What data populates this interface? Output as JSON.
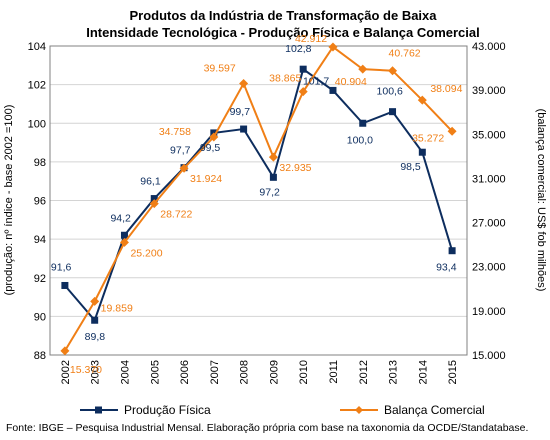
{
  "chart_data": {
    "type": "line",
    "title": "Produtos da Indústria de Transformação de Baixa",
    "subtitle": "Intensidade Tecnológica - Produção Física e Balança Comercial",
    "ylabel_left": "(produção: nº índice - base 2002 =100)",
    "ylabel_right": "(balança comercial: US$ fob milhões)",
    "source": "Fonte: IBGE – Pesquisa Industrial Mensal. Elaboração própria com base na taxonomia da OCDE/Standatabase.",
    "categories": [
      "2002",
      "2003",
      "2004",
      "2005",
      "2006",
      "2007",
      "2008",
      "2009",
      "2010",
      "2011",
      "2012",
      "2013",
      "2014",
      "2015"
    ],
    "ylim_left": [
      88,
      104
    ],
    "yticks_left": [
      "88",
      "90",
      "92",
      "94",
      "96",
      "98",
      "100",
      "102",
      "104"
    ],
    "ylim_right": [
      15000,
      43000
    ],
    "yticks_right": [
      "15.000",
      "19.000",
      "23.000",
      "27.000",
      "31.000",
      "35.000",
      "39.000",
      "43.000"
    ],
    "grid": true,
    "legend_position": "bottom",
    "series": [
      {
        "name": "Produção Física",
        "axis": "left",
        "color": "#0d2d5e",
        "marker": "square",
        "values": [
          91.6,
          89.8,
          94.2,
          96.1,
          97.7,
          99.5,
          99.7,
          97.2,
          102.8,
          101.7,
          100.0,
          100.6,
          98.5,
          93.4
        ],
        "labels": [
          "91,6",
          "89,8",
          "94,2",
          "96,1",
          "97,7",
          "99,5",
          "99,7",
          "97,2",
          "102,8",
          "101,7",
          "100,0",
          "100,6",
          "98,5",
          "93,4"
        ]
      },
      {
        "name": "Balança Comercial",
        "axis": "right",
        "color": "#f07f16",
        "marker": "diamond",
        "values": [
          15370,
          19859,
          25200,
          28722,
          31924,
          34758,
          39597,
          32935,
          38865,
          42912,
          40904,
          40762,
          38094,
          35272
        ],
        "labels": [
          "15.370",
          "19.859",
          "25.200",
          "28.722",
          "31.924",
          "34.758",
          "39.597",
          "32.935",
          "38.865",
          "42.912",
          "40.904",
          "40.762",
          "38.094",
          "35.272"
        ]
      }
    ]
  }
}
